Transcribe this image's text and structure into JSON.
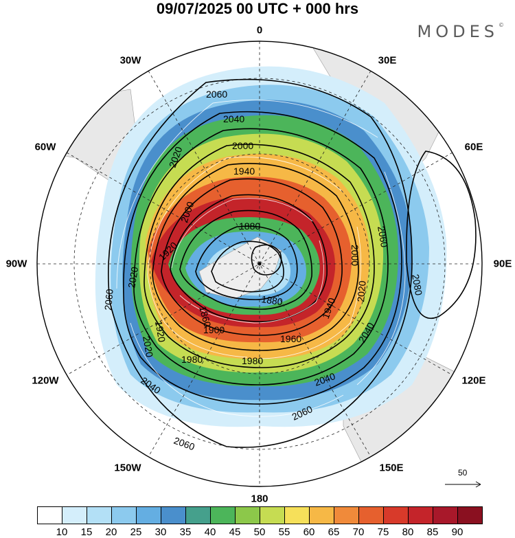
{
  "title": "09/07/2025  00 UTC  + 000 hrs",
  "logo": "MODES",
  "logo_mark": "©",
  "longitude_labels": {
    "0": "0",
    "30E": "30E",
    "60E": "60E",
    "90E": "90E",
    "120E": "120E",
    "150E": "150E",
    "180": "180",
    "150W": "150W",
    "120W": "120W",
    "90W": "90W",
    "60W": "60W",
    "30W": "30W"
  },
  "contour_labels": [
    "2060",
    "2040",
    "2020",
    "2000",
    "1980",
    "1960",
    "1940",
    "1920",
    "1900",
    "1880",
    "1860",
    "2080"
  ],
  "wind_reference": "50",
  "colorbar": {
    "ticks": [
      "10",
      "15",
      "20",
      "25",
      "30",
      "35",
      "40",
      "45",
      "50",
      "55",
      "60",
      "65",
      "70",
      "75",
      "80",
      "85",
      "90"
    ],
    "colors": [
      "#ffffff",
      "#d4eefb",
      "#b3e0f6",
      "#8ccaee",
      "#64aee2",
      "#4a8fcc",
      "#45a08c",
      "#4cb55a",
      "#8cc84a",
      "#c6dc52",
      "#f6e05a",
      "#f6b846",
      "#f08a3a",
      "#e6602e",
      "#d83a2a",
      "#c4242a",
      "#a8182a",
      "#8a1020"
    ]
  }
}
